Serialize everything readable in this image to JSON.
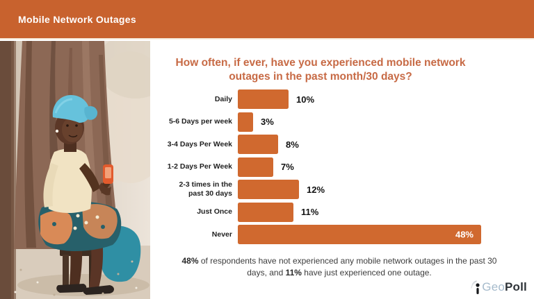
{
  "header": {
    "title": "Mobile Network Outages"
  },
  "chart_data": {
    "type": "bar",
    "orientation": "horizontal",
    "title": "How often, if ever, have you experienced mobile network outages in the past month/30 days?",
    "categories": [
      "Daily",
      "5-6 Days per week",
      "3-4 Days  Per Week",
      "1-2 Days  Per Week",
      "2-3 times  in the\npast 30 days",
      "Just Once",
      "Never"
    ],
    "values": [
      10,
      3,
      8,
      7,
      12,
      11,
      48
    ],
    "value_labels": [
      "10%",
      "3%",
      "8%",
      "7%",
      "12%",
      "11%",
      "48%"
    ],
    "value_label_inside": [
      false,
      false,
      false,
      false,
      false,
      false,
      true
    ],
    "xlim": [
      0,
      48
    ],
    "bar_color": "#D0692F",
    "legend": "none",
    "grid": "off"
  },
  "footer": {
    "parts": [
      {
        "text": "48%",
        "bold": true
      },
      {
        "text": " of respondents have not experienced any mobile network outages in the past 30 days, and ",
        "bold": false
      },
      {
        "text": "11%",
        "bold": true
      },
      {
        "text": " have just experienced one outage.",
        "bold": false
      }
    ]
  },
  "logo": {
    "geo": "Geo",
    "poll": "Poll"
  },
  "colors": {
    "header_bg": "#C8622E",
    "bar": "#D0692F",
    "title_text": "#C76A45",
    "body_text": "#3c3c3c",
    "value_inside_text": "#ffffff"
  }
}
